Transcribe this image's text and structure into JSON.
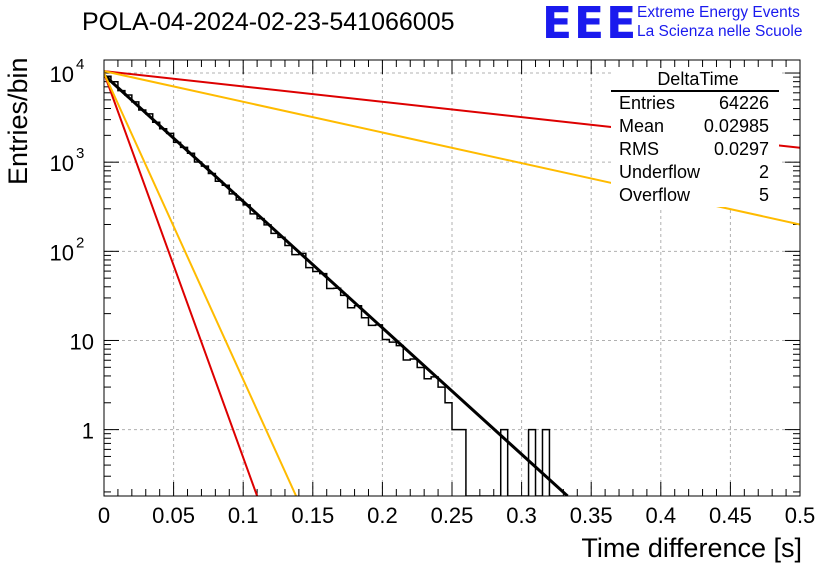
{
  "page_title": "POLA-04-2024-02-23-541066005",
  "logo": {
    "mark": "EEE",
    "line1": "Extreme Energy Events",
    "line2": "La Scienza nelle Scuole",
    "color": "#1a1aee"
  },
  "stats_box": {
    "title": "DeltaTime",
    "rows": [
      {
        "label": "Entries",
        "value": "64226"
      },
      {
        "label": "Mean",
        "value": "0.02985"
      },
      {
        "label": "RMS",
        "value": "0.0297"
      },
      {
        "label": "Underflow",
        "value": "2"
      },
      {
        "label": "Overflow",
        "value": "5"
      }
    ]
  },
  "chart_data": {
    "type": "histogram",
    "title": "POLA-04-2024-02-23-541066005",
    "xlabel": "Time difference [s]",
    "ylabel": "Entries/bin",
    "xlim": [
      0,
      0.5
    ],
    "ylim": [
      0.18,
      14000
    ],
    "y_scale": "log",
    "grid": true,
    "x_ticks": [
      "0",
      "0.05",
      "0.1",
      "0.15",
      "0.2",
      "0.25",
      "0.3",
      "0.35",
      "0.4",
      "0.45",
      "0.5"
    ],
    "x_tick_values": [
      0,
      0.05,
      0.1,
      0.15,
      0.2,
      0.25,
      0.3,
      0.35,
      0.4,
      0.45,
      0.5
    ],
    "y_ticks": [
      {
        "value": 1,
        "label": "1",
        "sup": ""
      },
      {
        "value": 10,
        "label": "10",
        "sup": ""
      },
      {
        "value": 100,
        "label": "10",
        "sup": "2"
      },
      {
        "value": 1000,
        "label": "10",
        "sup": "3"
      },
      {
        "value": 10000,
        "label": "10",
        "sup": "4"
      }
    ],
    "histogram": {
      "name": "DeltaTime",
      "bin_width": 0.005,
      "bin_low_edges": [
        0.24,
        0.245,
        0.25,
        0.255,
        0.26,
        0.265,
        0.27,
        0.275,
        0.28,
        0.285,
        0.29,
        0.295,
        0.3,
        0.305,
        0.31,
        0.315,
        0.32,
        0.325
      ],
      "tail_counts": [
        3,
        2,
        1,
        1,
        0,
        0,
        0,
        0,
        0,
        1,
        0,
        0,
        0,
        1,
        0,
        1,
        0,
        0
      ],
      "exponential_region": {
        "x_start": 0,
        "x_end": 0.24,
        "y_start": 10000,
        "y_end": 3.2
      },
      "noise_amplitude": 0.12,
      "color": "#000000"
    },
    "fits": [
      {
        "name": "fit",
        "color": "#000000",
        "width": 3,
        "points": [
          [
            0,
            9500
          ],
          [
            0.333,
            0.18
          ]
        ]
      },
      {
        "name": "red-steep",
        "color": "#dd0000",
        "width": 2,
        "points": [
          [
            0,
            10000
          ],
          [
            0.11,
            0.18
          ]
        ]
      },
      {
        "name": "yellow-steep",
        "color": "#ffbb00",
        "width": 2,
        "points": [
          [
            0,
            10000
          ],
          [
            0.138,
            0.18
          ]
        ]
      },
      {
        "name": "red-shallow",
        "color": "#dd0000",
        "width": 2,
        "points": [
          [
            0,
            10500
          ],
          [
            0.5,
            1450
          ]
        ]
      },
      {
        "name": "yellow-shallow",
        "color": "#ffbb00",
        "width": 2,
        "points": [
          [
            0,
            10500
          ],
          [
            0.5,
            200
          ]
        ]
      }
    ]
  }
}
